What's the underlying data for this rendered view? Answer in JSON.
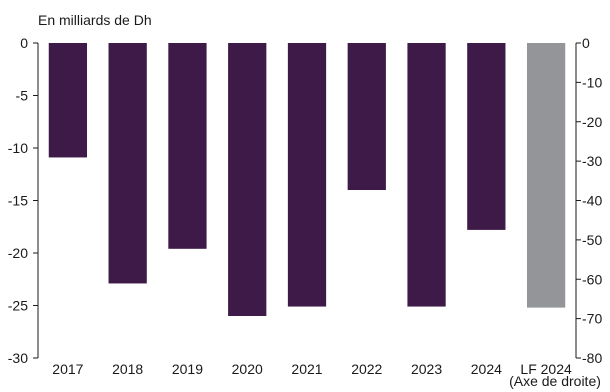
{
  "chart_data": {
    "type": "bar",
    "unit_label": "En milliards de Dh",
    "categories": [
      "2017",
      "2018",
      "2019",
      "2020",
      "2021",
      "2022",
      "2023",
      "2024",
      "LF 2024"
    ],
    "series": [
      {
        "axis": "left",
        "values": [
          -10.9,
          -22.9,
          -19.6,
          -26.0,
          -25.1,
          -14.0,
          -25.1,
          -17.8,
          null
        ],
        "color": "#3d1a47"
      },
      {
        "axis": "right",
        "values": [
          null,
          null,
          null,
          null,
          null,
          null,
          null,
          null,
          -67.2
        ],
        "color": "#939598"
      }
    ],
    "annotation": "(Axe de droite)",
    "left_axis": {
      "range": [
        -30,
        0
      ],
      "ticks": [
        "0",
        "-5",
        "-10",
        "-15",
        "-20",
        "-25",
        "-30"
      ]
    },
    "right_axis": {
      "range": [
        -80,
        0
      ],
      "ticks": [
        "0",
        "-10",
        "-20",
        "-30",
        "-40",
        "-50",
        "-60",
        "-70",
        "-80"
      ]
    },
    "grid": false,
    "legend": "none"
  }
}
